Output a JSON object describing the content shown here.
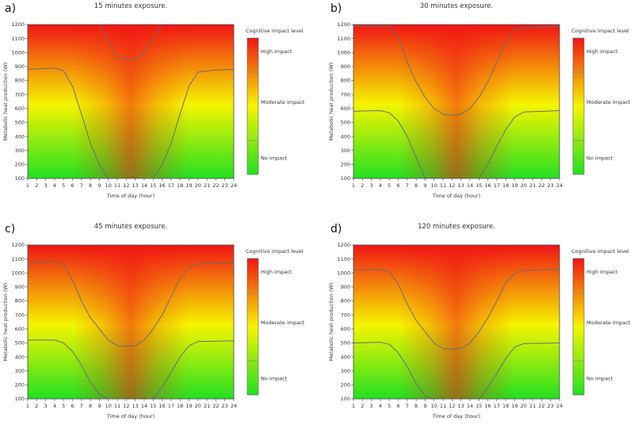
{
  "figure": {
    "legend_title": "Cognitive impact level",
    "legend_labels": [
      "High impact",
      "Moderate impact",
      "No impact"
    ],
    "colors": {
      "low": "#23e021",
      "mid": "#f5f500",
      "high": "#f11515",
      "contour": "#6c6c6c"
    }
  },
  "chart_data": [
    {
      "type": "heatmap",
      "panel_label": "a)",
      "title": "15 minutes exposure.",
      "xlabel": "Time of day (hour)",
      "ylabel": "Metabolic heat production (W)",
      "x_ticks": [
        1,
        2,
        3,
        4,
        5,
        6,
        7,
        8,
        9,
        10,
        11,
        12,
        13,
        14,
        15,
        16,
        17,
        18,
        19,
        20,
        21,
        22,
        23,
        24
      ],
      "y_ticks": [
        100,
        200,
        300,
        400,
        500,
        600,
        700,
        800,
        900,
        1000,
        1100,
        1200
      ],
      "xlim": [
        1,
        24
      ],
      "ylim": [
        100,
        1200
      ],
      "contours": [
        {
          "level": "low-moderate boundary",
          "points": [
            [
              1,
              880
            ],
            [
              4,
              890
            ],
            [
              5,
              870
            ],
            [
              6,
              760
            ],
            [
              7,
              560
            ],
            [
              8,
              350
            ],
            [
              9,
              200
            ],
            [
              10,
              100
            ]
          ]
        },
        {
          "level": "low-moderate boundary",
          "points": [
            [
              15,
              100
            ],
            [
              16,
              200
            ],
            [
              17,
              350
            ],
            [
              18,
              560
            ],
            [
              19,
              760
            ],
            [
              20,
              860
            ],
            [
              22,
              875
            ],
            [
              24,
              880
            ]
          ]
        },
        {
          "level": "moderate-high boundary",
          "points": [
            [
              9,
              1200
            ],
            [
              10,
              1080
            ],
            [
              11,
              960
            ],
            [
              12,
              950
            ],
            [
              13,
              950
            ],
            [
              14,
              1000
            ],
            [
              15,
              1100
            ],
            [
              16,
              1200
            ]
          ]
        }
      ]
    },
    {
      "type": "heatmap",
      "panel_label": "b)",
      "title": "30 minutes exposure.",
      "xlabel": "Time of day (hour)",
      "ylabel": "Metabolic heat production (W)",
      "x_ticks": [
        1,
        2,
        3,
        4,
        5,
        6,
        7,
        8,
        9,
        10,
        11,
        12,
        13,
        14,
        15,
        16,
        17,
        18,
        19,
        20,
        21,
        22,
        23,
        24
      ],
      "y_ticks": [
        100,
        200,
        300,
        400,
        500,
        600,
        700,
        800,
        900,
        1000,
        1100,
        1200
      ],
      "xlim": [
        1,
        24
      ],
      "ylim": [
        100,
        1200
      ],
      "contours": [
        {
          "level": "moderate-high boundary",
          "points": [
            [
              1,
              1190
            ],
            [
              5,
              1190
            ],
            [
              6,
              1110
            ],
            [
              7,
              930
            ],
            [
              8,
              790
            ],
            [
              9,
              680
            ],
            [
              10,
              600
            ],
            [
              11,
              560
            ],
            [
              12,
              550
            ],
            [
              13,
              560
            ],
            [
              14,
              600
            ],
            [
              15,
              680
            ],
            [
              16,
              790
            ],
            [
              17,
              930
            ],
            [
              18,
              1080
            ],
            [
              19,
              1170
            ],
            [
              21,
              1180
            ],
            [
              24,
              1190
            ]
          ]
        },
        {
          "level": "low-moderate boundary",
          "points": [
            [
              1,
              580
            ],
            [
              4,
              585
            ],
            [
              5,
              570
            ],
            [
              6,
              510
            ],
            [
              7,
              400
            ],
            [
              8,
              250
            ],
            [
              9,
              100
            ]
          ]
        },
        {
          "level": "low-moderate boundary",
          "points": [
            [
              15,
              100
            ],
            [
              16,
              200
            ],
            [
              17,
              330
            ],
            [
              18,
              450
            ],
            [
              19,
              540
            ],
            [
              20,
              575
            ],
            [
              24,
              585
            ]
          ]
        }
      ]
    },
    {
      "type": "heatmap",
      "panel_label": "c)",
      "title": "45 minutes exposure.",
      "xlabel": "Time of day (hour)",
      "ylabel": "Metabolic heat production (W)",
      "x_ticks": [
        1,
        2,
        3,
        4,
        5,
        6,
        7,
        8,
        9,
        10,
        11,
        12,
        13,
        14,
        15,
        16,
        17,
        18,
        19,
        20,
        21,
        22,
        23,
        24
      ],
      "y_ticks": [
        100,
        200,
        300,
        400,
        500,
        600,
        700,
        800,
        900,
        1000,
        1100,
        1200
      ],
      "xlim": [
        1,
        24
      ],
      "ylim": [
        100,
        1200
      ],
      "contours": [
        {
          "level": "moderate-high boundary",
          "points": [
            [
              1,
              1075
            ],
            [
              4,
              1080
            ],
            [
              5,
              1060
            ],
            [
              6,
              950
            ],
            [
              7,
              800
            ],
            [
              8,
              680
            ],
            [
              9,
              600
            ],
            [
              10,
              520
            ],
            [
              11,
              480
            ],
            [
              12,
              475
            ],
            [
              13,
              480
            ],
            [
              14,
              520
            ],
            [
              15,
              600
            ],
            [
              16,
              700
            ],
            [
              17,
              830
            ],
            [
              18,
              960
            ],
            [
              19,
              1040
            ],
            [
              20,
              1065
            ],
            [
              24,
              1075
            ]
          ]
        },
        {
          "level": "low-moderate boundary",
          "points": [
            [
              1,
              520
            ],
            [
              4,
              520
            ],
            [
              5,
              500
            ],
            [
              6,
              440
            ],
            [
              7,
              340
            ],
            [
              8,
              220
            ],
            [
              9,
              130
            ],
            [
              10,
              100
            ]
          ]
        },
        {
          "level": "low-moderate boundary",
          "points": [
            [
              15,
              100
            ],
            [
              16,
              180
            ],
            [
              17,
              290
            ],
            [
              18,
              400
            ],
            [
              19,
              480
            ],
            [
              20,
              510
            ],
            [
              24,
              515
            ]
          ]
        }
      ]
    },
    {
      "type": "heatmap",
      "panel_label": "d)",
      "title": "120 minutes exposure.",
      "xlabel": "Time of day (hour)",
      "ylabel": "Metabolic heat production (W)",
      "x_ticks": [
        1,
        2,
        3,
        4,
        5,
        6,
        7,
        8,
        9,
        10,
        11,
        12,
        13,
        14,
        15,
        16,
        17,
        18,
        19,
        20,
        21,
        22,
        23,
        24
      ],
      "y_ticks": [
        100,
        200,
        300,
        400,
        500,
        600,
        700,
        800,
        900,
        1000,
        1100,
        1200
      ],
      "xlim": [
        1,
        24
      ],
      "ylim": [
        100,
        1200
      ],
      "contours": [
        {
          "level": "moderate-high boundary",
          "points": [
            [
              1,
              1020
            ],
            [
              4,
              1025
            ],
            [
              5,
              1010
            ],
            [
              6,
              920
            ],
            [
              7,
              780
            ],
            [
              8,
              660
            ],
            [
              9,
              580
            ],
            [
              10,
              500
            ],
            [
              11,
              460
            ],
            [
              12,
              455
            ],
            [
              13,
              460
            ],
            [
              14,
              500
            ],
            [
              15,
              580
            ],
            [
              16,
              680
            ],
            [
              17,
              800
            ],
            [
              18,
              930
            ],
            [
              19,
              1000
            ],
            [
              20,
              1020
            ],
            [
              24,
              1025
            ]
          ]
        },
        {
          "level": "low-moderate boundary",
          "points": [
            [
              1,
              500
            ],
            [
              4,
              505
            ],
            [
              5,
              490
            ],
            [
              6,
              430
            ],
            [
              7,
              330
            ],
            [
              8,
              210
            ],
            [
              9,
              120
            ],
            [
              10,
              100
            ]
          ]
        },
        {
          "level": "low-moderate boundary",
          "points": [
            [
              15,
              100
            ],
            [
              16,
              180
            ],
            [
              17,
              280
            ],
            [
              18,
              390
            ],
            [
              19,
              470
            ],
            [
              20,
              495
            ],
            [
              24,
              500
            ]
          ]
        }
      ]
    }
  ]
}
